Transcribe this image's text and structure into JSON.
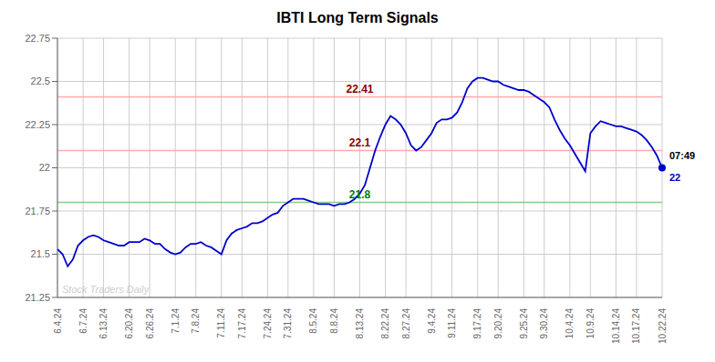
{
  "chart_data": {
    "type": "line",
    "title": "IBTI Long Term Signals",
    "categories": [
      "6.4.24",
      null,
      null,
      null,
      null,
      "6.7.24",
      null,
      null,
      null,
      "6.13.24",
      null,
      null,
      null,
      null,
      "6.20.24",
      null,
      null,
      null,
      "6.26.24",
      null,
      null,
      null,
      null,
      "7.1.24",
      null,
      null,
      null,
      "7.8.24",
      null,
      null,
      null,
      null,
      "7.11.24",
      null,
      null,
      null,
      "7.17.24",
      null,
      null,
      null,
      null,
      "7.24.24",
      null,
      null,
      null,
      "7.31.24",
      null,
      null,
      null,
      null,
      "8.5.24",
      null,
      null,
      null,
      "8.8.24",
      null,
      null,
      null,
      null,
      "8.13.24",
      null,
      null,
      null,
      null,
      "8.22.24",
      null,
      null,
      null,
      "8.27.24",
      null,
      null,
      null,
      null,
      "9.4.24",
      null,
      null,
      null,
      "9.11.24",
      null,
      null,
      null,
      null,
      "9.17.24",
      null,
      null,
      null,
      "9.20.24",
      null,
      null,
      null,
      null,
      "9.25.24",
      null,
      null,
      null,
      "9.30.24",
      null,
      null,
      null,
      null,
      "10.4.24",
      null,
      null,
      null,
      "10.9.24",
      null,
      null,
      null,
      null,
      "10.14.24",
      null,
      null,
      null,
      "10.17.24",
      null,
      null,
      null,
      null,
      "10.22.24"
    ],
    "values": [
      21.53,
      21.5,
      21.43,
      21.47,
      21.55,
      21.58,
      21.6,
      21.61,
      21.6,
      21.58,
      21.57,
      21.56,
      21.55,
      21.55,
      21.57,
      21.57,
      21.57,
      21.59,
      21.58,
      21.56,
      21.56,
      21.53,
      21.51,
      21.5,
      21.51,
      21.54,
      21.56,
      21.56,
      21.57,
      21.55,
      21.54,
      21.52,
      21.5,
      21.58,
      21.62,
      21.64,
      21.65,
      21.66,
      21.68,
      21.68,
      21.69,
      21.71,
      21.73,
      21.74,
      21.78,
      21.8,
      21.82,
      21.82,
      21.82,
      21.81,
      21.8,
      21.79,
      21.79,
      21.79,
      21.78,
      21.79,
      21.79,
      21.8,
      21.82,
      21.85,
      21.9,
      22.0,
      22.1,
      22.18,
      22.25,
      22.3,
      22.28,
      22.25,
      22.2,
      22.13,
      22.1,
      22.12,
      22.16,
      22.2,
      22.26,
      22.28,
      22.28,
      22.29,
      22.32,
      22.38,
      22.46,
      22.5,
      22.52,
      22.52,
      22.51,
      22.5,
      22.5,
      22.48,
      22.47,
      22.46,
      22.45,
      22.45,
      22.44,
      22.42,
      22.4,
      22.38,
      22.35,
      22.28,
      22.22,
      22.17,
      22.13,
      22.08,
      22.03,
      21.98,
      22.2,
      22.24,
      22.27,
      22.26,
      22.25,
      22.24,
      22.24,
      22.23,
      22.22,
      22.21,
      22.19,
      22.16,
      22.12,
      22.07,
      22.0
    ],
    "color": "#0000cc",
    "ylim": [
      21.25,
      22.75
    ],
    "yticks": [
      21.25,
      21.5,
      21.75,
      22,
      22.25,
      22.5,
      22.75
    ],
    "grid": true,
    "reference_lines": [
      {
        "value": 22.41,
        "label": "22.41",
        "color": "#ffaaaa",
        "label_color": "darkred"
      },
      {
        "value": 22.1,
        "label": "22.1",
        "color": "#ffaaaa",
        "label_color": "darkred"
      },
      {
        "value": 21.8,
        "label": "21.8",
        "color": "#88cc88",
        "label_color": "green"
      }
    ],
    "last_point_labels": {
      "time": "07:49",
      "price": "22"
    },
    "watermark": "Stock Traders Daily"
  }
}
